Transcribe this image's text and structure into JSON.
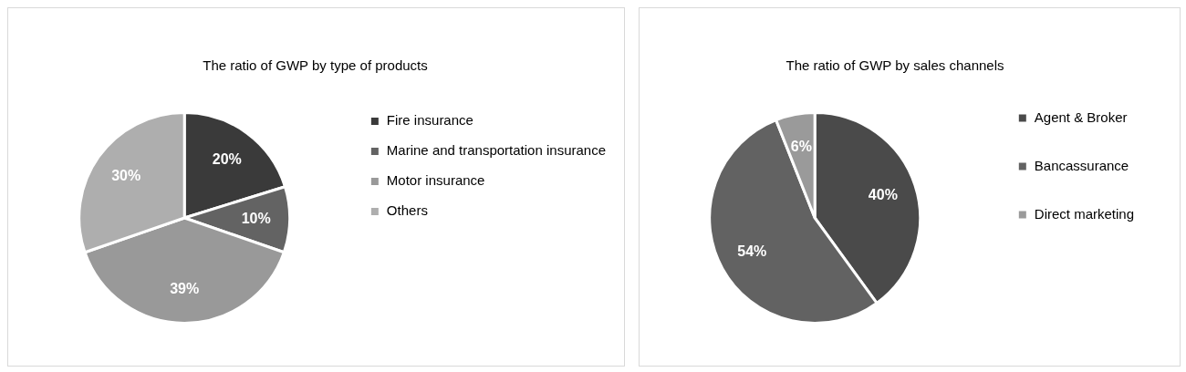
{
  "chart_data": [
    {
      "type": "pie",
      "title": "The ratio of GWP by type of products",
      "categories": [
        "Fire insurance",
        "Marine and transportation insurance",
        "Motor insurance",
        "Others"
      ],
      "values": [
        20,
        10,
        39,
        30
      ],
      "colors": [
        "#3a3a3a",
        "#636363",
        "#999999",
        "#aeaeae"
      ],
      "value_labels": [
        "20%",
        "10%",
        "39%",
        "30%"
      ],
      "legend": "right"
    },
    {
      "type": "pie",
      "title": "The ratio of GWP by sales channels",
      "categories": [
        "Agent & Broker",
        "Bancassurance",
        "Direct marketing"
      ],
      "values": [
        40,
        54,
        6
      ],
      "colors": [
        "#4a4a4a",
        "#626262",
        "#9a9a9a"
      ],
      "value_labels": [
        "40%",
        "54%",
        "6%"
      ],
      "legend": "right"
    }
  ]
}
